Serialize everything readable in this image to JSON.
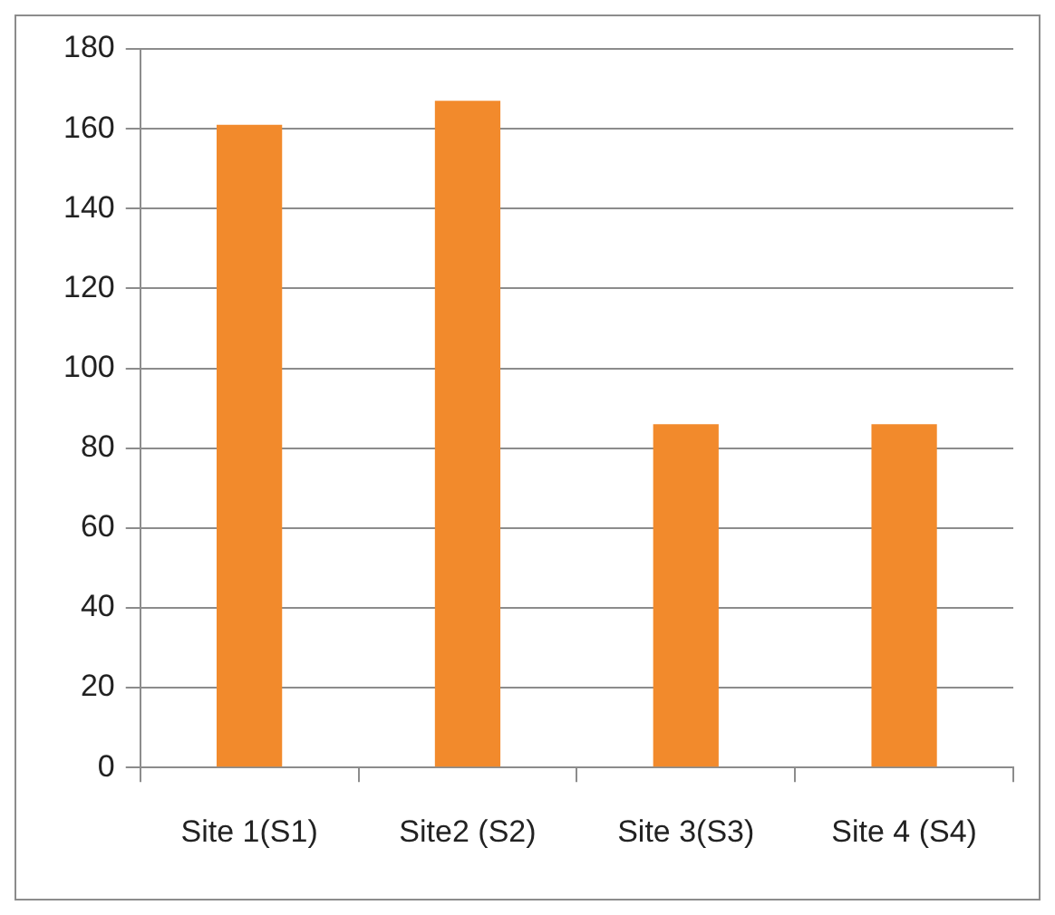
{
  "chart_data": {
    "type": "bar",
    "categories": [
      "Site 1(S1)",
      "Site2 (S2)",
      "Site 3(S3)",
      "Site 4 (S4)"
    ],
    "values": [
      161,
      167,
      86,
      86
    ],
    "color": "#f28a2c",
    "ylim": [
      0,
      180
    ],
    "yticks": [
      0,
      20,
      40,
      60,
      80,
      100,
      120,
      140,
      160,
      180
    ],
    "grid": "y",
    "legend": false
  }
}
